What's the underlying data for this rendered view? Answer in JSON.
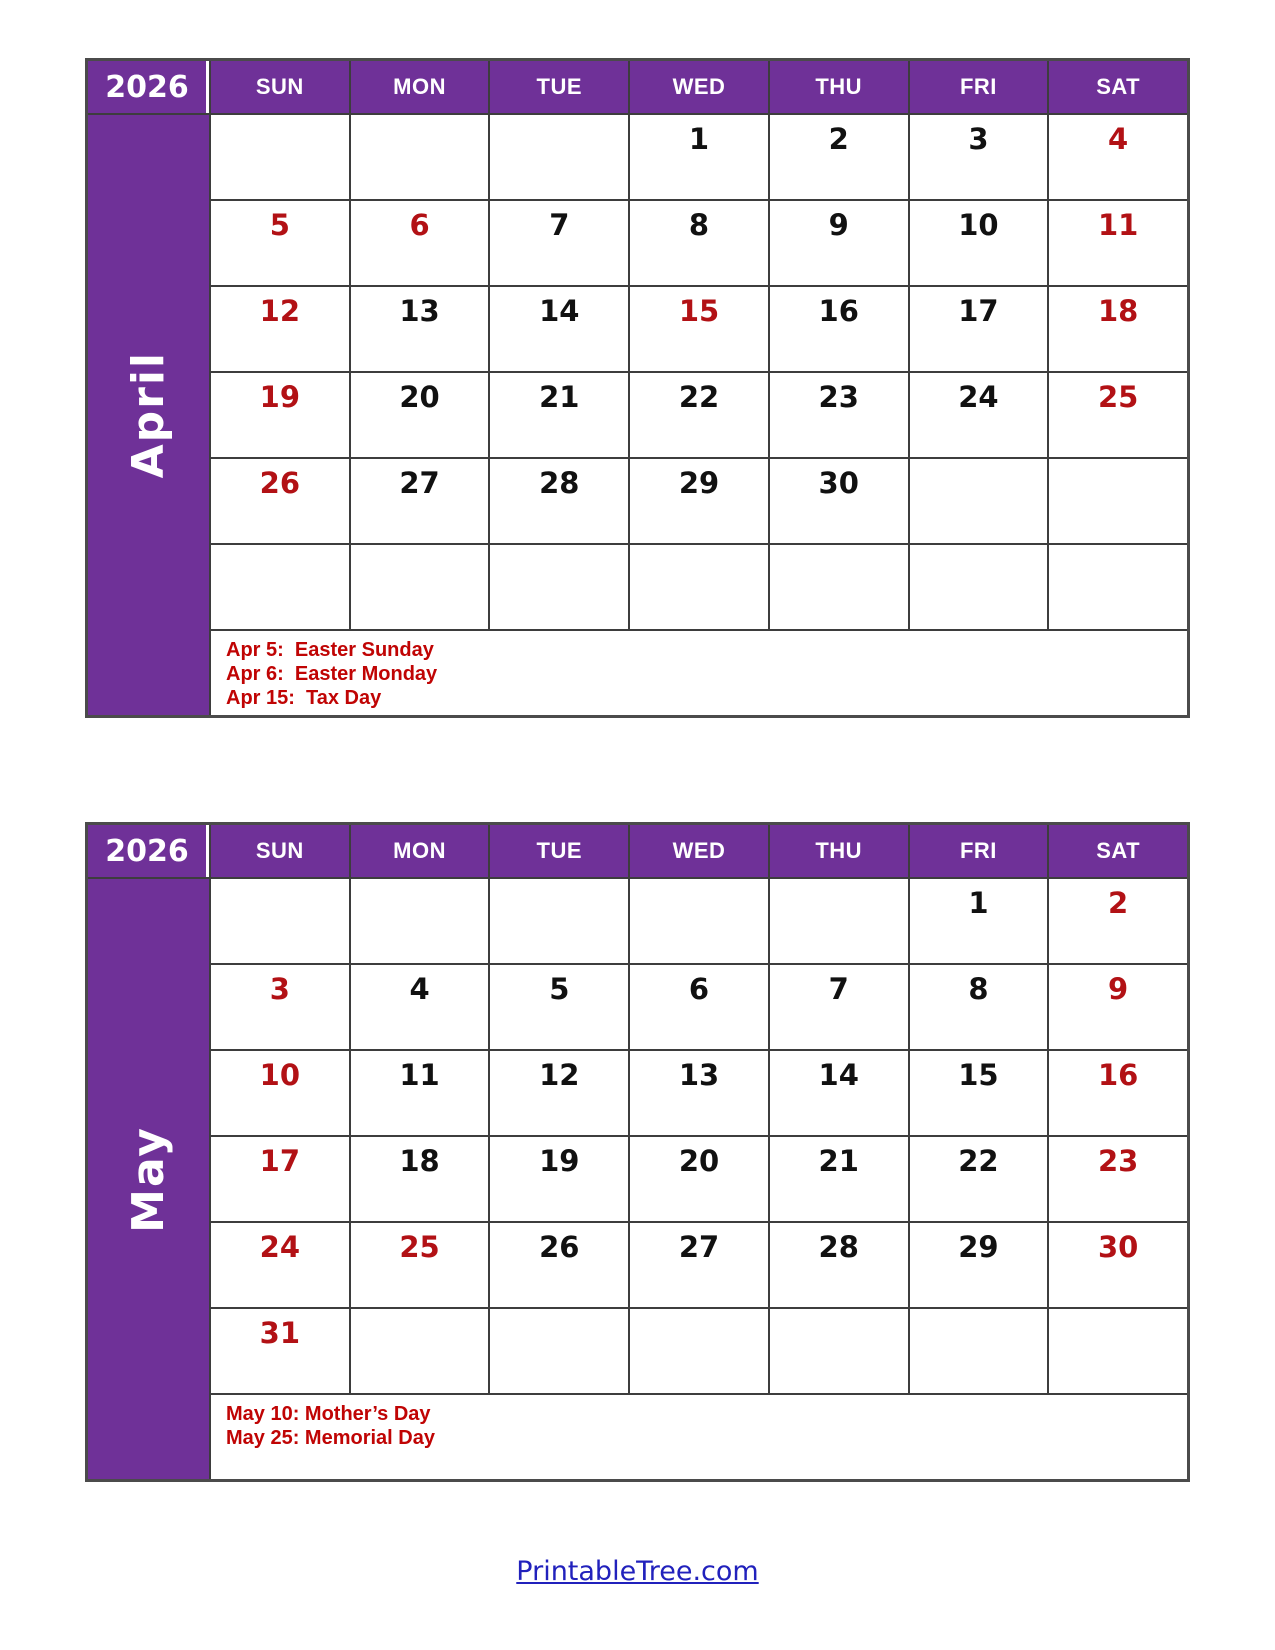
{
  "colors": {
    "header_purple": "#6F3198",
    "grid_line": "#3d3d3d",
    "outer_border": "#4b4b4b",
    "date_black": "#111111",
    "date_red": "#B21115",
    "holiday_red": "#C00404",
    "footer_blue": "#2121BC"
  },
  "months": [
    {
      "year": "2026",
      "name": "April",
      "day_headers": [
        "SUN",
        "MON",
        "TUE",
        "WED",
        "THU",
        "FRI",
        "SAT"
      ],
      "weeks": [
        [
          "",
          "",
          "",
          "1",
          "2",
          "3",
          "4"
        ],
        [
          "5",
          "6",
          "7",
          "8",
          "9",
          "10",
          "11"
        ],
        [
          "12",
          "13",
          "14",
          "15",
          "16",
          "17",
          "18"
        ],
        [
          "19",
          "20",
          "21",
          "22",
          "23",
          "24",
          "25"
        ],
        [
          "26",
          "27",
          "28",
          "29",
          "30",
          "",
          ""
        ],
        [
          "",
          "",
          "",
          "",
          "",
          "",
          ""
        ]
      ],
      "red_days": [
        4,
        5,
        6,
        11,
        12,
        15,
        18,
        19,
        25,
        26
      ],
      "holidays": [
        "Apr 5:  Easter Sunday",
        "Apr 6:  Easter Monday",
        "Apr 15:  Tax Day"
      ]
    },
    {
      "year": "2026",
      "name": "May",
      "day_headers": [
        "SUN",
        "MON",
        "TUE",
        "WED",
        "THU",
        "FRI",
        "SAT"
      ],
      "weeks": [
        [
          "",
          "",
          "",
          "",
          "",
          "1",
          "2"
        ],
        [
          "3",
          "4",
          "5",
          "6",
          "7",
          "8",
          "9"
        ],
        [
          "10",
          "11",
          "12",
          "13",
          "14",
          "15",
          "16"
        ],
        [
          "17",
          "18",
          "19",
          "20",
          "21",
          "22",
          "23"
        ],
        [
          "24",
          "25",
          "26",
          "27",
          "28",
          "29",
          "30"
        ],
        [
          "31",
          "",
          "",
          "",
          "",
          "",
          ""
        ]
      ],
      "red_days": [
        2,
        3,
        9,
        10,
        16,
        17,
        23,
        24,
        25,
        30,
        31
      ],
      "holidays": [
        "May 10: Mother’s Day",
        "May 25: Memorial Day"
      ]
    }
  ],
  "footer": {
    "site_link": "PrintableTree.com"
  }
}
